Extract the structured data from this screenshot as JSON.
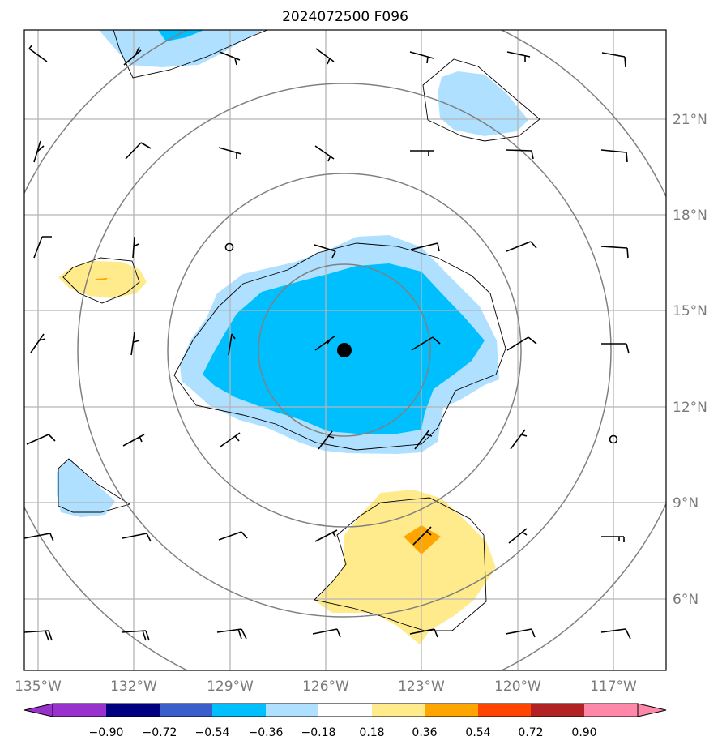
{
  "title": "2024072500 F096",
  "longitude_labels": [
    "135°W",
    "132°W",
    "129°W",
    "126°W",
    "123°W",
    "120°W",
    "117°W"
  ],
  "latitude_labels": [
    "21°N",
    "18°N",
    "15°N",
    "12°N",
    "9°N",
    "6°N"
  ],
  "colorbar": {
    "tick_labels": [
      "−0.90",
      "−0.72",
      "−0.54",
      "−0.36",
      "−0.18",
      "0.18",
      "0.36",
      "0.54",
      "0.72",
      "0.90"
    ],
    "colors": [
      "#9932cc",
      "#000080",
      "#3a5fcd",
      "#00bfff",
      "#b0e0ff",
      "#ffffff",
      "#ffea8c",
      "#ffa500",
      "#ff4500",
      "#b22222",
      "#ff88aa"
    ]
  },
  "storm_center": {
    "lon": -125.5,
    "lat": 13.8
  },
  "calm_markers": [
    {
      "lon": -129.0,
      "lat": 16.9
    },
    {
      "lon": -117.0,
      "lat": 10.9
    }
  ]
}
